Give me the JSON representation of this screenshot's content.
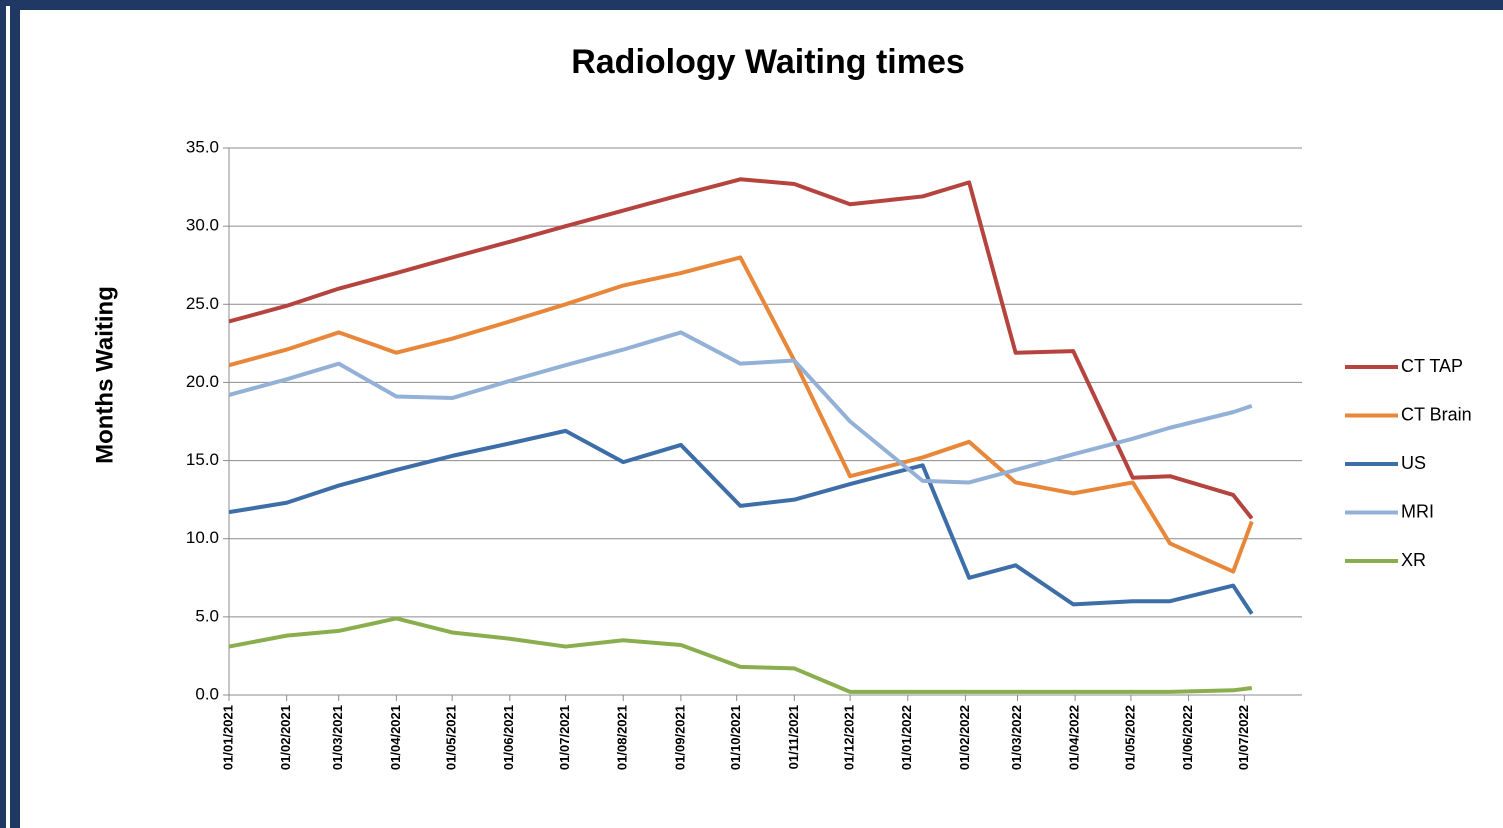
{
  "chart_data": {
    "type": "line",
    "title": "Radiology Waiting times",
    "y_label": "Months Waiting",
    "x": [
      "01/01/2021",
      "01/02/2021",
      "01/03/2021",
      "01/04/2021",
      "01/05/2021",
      "01/06/2021",
      "01/07/2021",
      "01/08/2021",
      "01/09/2021",
      "03/10/2021",
      "01/11/2021",
      "01/12/2021",
      "09/01/2022",
      "03/02/2022",
      "28/02/2022",
      "31/03/2022",
      "02/05/2022",
      "22/05/2022",
      "25/06/2022",
      "05/07/2022"
    ],
    "series": [
      {
        "name": "CT TAP",
        "color": "#b5443f",
        "values": [
          23.9,
          24.9,
          26.0,
          27.0,
          28.0,
          29.0,
          30.0,
          31.0,
          32.0,
          33.0,
          32.7,
          31.4,
          31.9,
          32.8,
          21.9,
          22.0,
          13.9,
          14.0,
          12.8,
          11.3
        ]
      },
      {
        "name": "CT Brain",
        "color": "#e8873a",
        "values": [
          21.1,
          22.1,
          23.2,
          21.9,
          22.8,
          23.9,
          25.0,
          26.2,
          27.0,
          28.0,
          21.4,
          14.0,
          15.2,
          16.2,
          13.6,
          12.9,
          13.6,
          9.7,
          7.9,
          11.1
        ]
      },
      {
        "name": "US",
        "color": "#3e6ea8",
        "values": [
          11.7,
          12.3,
          13.4,
          14.4,
          15.3,
          16.1,
          16.9,
          14.9,
          16.0,
          12.1,
          12.5,
          13.5,
          14.7,
          7.5,
          8.3,
          5.8,
          6.0,
          6.0,
          7.0,
          5.2
        ]
      },
      {
        "name": "MRI",
        "color": "#93b1d6",
        "values": [
          19.2,
          20.2,
          21.2,
          19.1,
          19.0,
          20.1,
          21.1,
          22.1,
          23.2,
          21.2,
          21.4,
          17.5,
          13.7,
          13.6,
          14.4,
          15.4,
          16.4,
          17.1,
          18.1,
          18.5
        ]
      },
      {
        "name": "XR",
        "color": "#8aae4d",
        "values": [
          3.1,
          3.8,
          4.1,
          4.9,
          4.0,
          3.6,
          3.1,
          3.5,
          3.2,
          1.8,
          1.7,
          0.2,
          0.2,
          0.2,
          0.2,
          0.2,
          0.2,
          0.2,
          0.3,
          0.45
        ]
      }
    ],
    "xlim": [
      "01/01/2021",
      "01/08/2022"
    ],
    "xticks": [
      "01/01/2021",
      "01/02/2021",
      "01/03/2021",
      "01/04/2021",
      "01/05/2021",
      "01/06/2021",
      "01/07/2021",
      "01/08/2021",
      "01/09/2021",
      "01/10/2021",
      "01/11/2021",
      "01/12/2021",
      "01/01/2022",
      "01/02/2022",
      "01/03/2022",
      "01/04/2022",
      "01/05/2022",
      "01/06/2022",
      "01/07/2022"
    ],
    "ylim": [
      0,
      35
    ],
    "yticks": [
      {
        "value": 0,
        "label": "0.0"
      },
      {
        "value": 5,
        "label": "5.0"
      },
      {
        "value": 10,
        "label": "10.0"
      },
      {
        "value": 15,
        "label": "15.0"
      },
      {
        "value": 20,
        "label": "20.0"
      },
      {
        "value": 25,
        "label": "25.0"
      },
      {
        "value": 30,
        "label": "30.0"
      },
      {
        "value": 35,
        "label": "35.0"
      }
    ],
    "grid": true,
    "legend": "right"
  }
}
